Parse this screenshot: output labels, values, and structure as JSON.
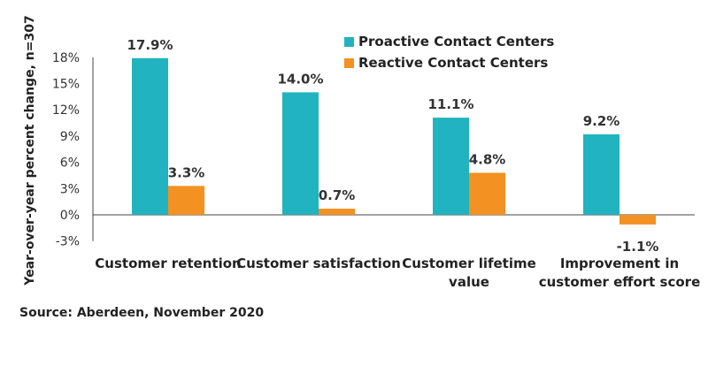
{
  "chart_data": {
    "type": "bar",
    "ylabel": "Year-over-year percent change, n=307",
    "ylim": [
      -3,
      18
    ],
    "yticks": [
      "18%",
      "15%",
      "12%",
      "9%",
      "6%",
      "3%",
      "0%",
      "-3%"
    ],
    "ytick_values": [
      18,
      15,
      12,
      9,
      6,
      3,
      0,
      -3
    ],
    "grid": false,
    "legend_position": "top-center",
    "categories": [
      [
        "Customer retention"
      ],
      [
        "Customer satisfaction"
      ],
      [
        "Customer lifetime",
        "value"
      ],
      [
        "Improvement in",
        "customer effort score"
      ]
    ],
    "series": [
      {
        "name": "Proactive Contact Centers",
        "color": "#21b3bf",
        "values": [
          17.9,
          14.0,
          11.1,
          9.2
        ],
        "labels": [
          "17.9%",
          "14.0%",
          "11.1%",
          "9.2%"
        ]
      },
      {
        "name": "Reactive Contact Centers",
        "color": "#f39122",
        "values": [
          3.3,
          0.7,
          4.8,
          -1.1
        ],
        "labels": [
          "3.3%",
          "0.7%",
          "4.8%",
          "-1.1%"
        ]
      }
    ]
  },
  "source": "Source: Aberdeen, November 2020"
}
